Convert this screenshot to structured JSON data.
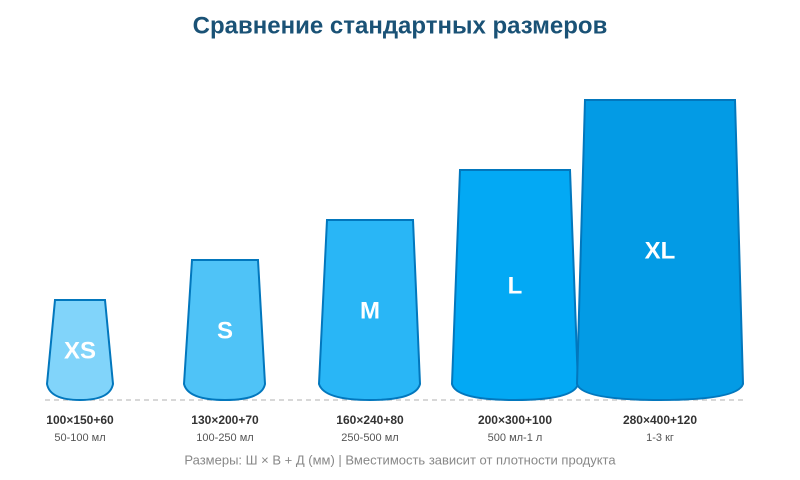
{
  "title": "Сравнение стандартных размеров",
  "nodes": [
    {
      "label": "XS",
      "dimensions": "100×150+60",
      "capacity": "50-100 мл"
    },
    {
      "label": "S",
      "dimensions": "130×200+70",
      "capacity": "100-250 мл"
    },
    {
      "label": "M",
      "dimensions": "160×240+80",
      "capacity": "250-500 мл"
    },
    {
      "label": "L",
      "dimensions": "200×300+100",
      "capacity": "500 мл-1 л"
    },
    {
      "label": "XL",
      "dimensions": "280×400+120",
      "capacity": "1-3 кг"
    }
  ],
  "footnote": "Размеры: Ш × В + Д (мм) | Вместимость зависит от плотности продукта"
}
